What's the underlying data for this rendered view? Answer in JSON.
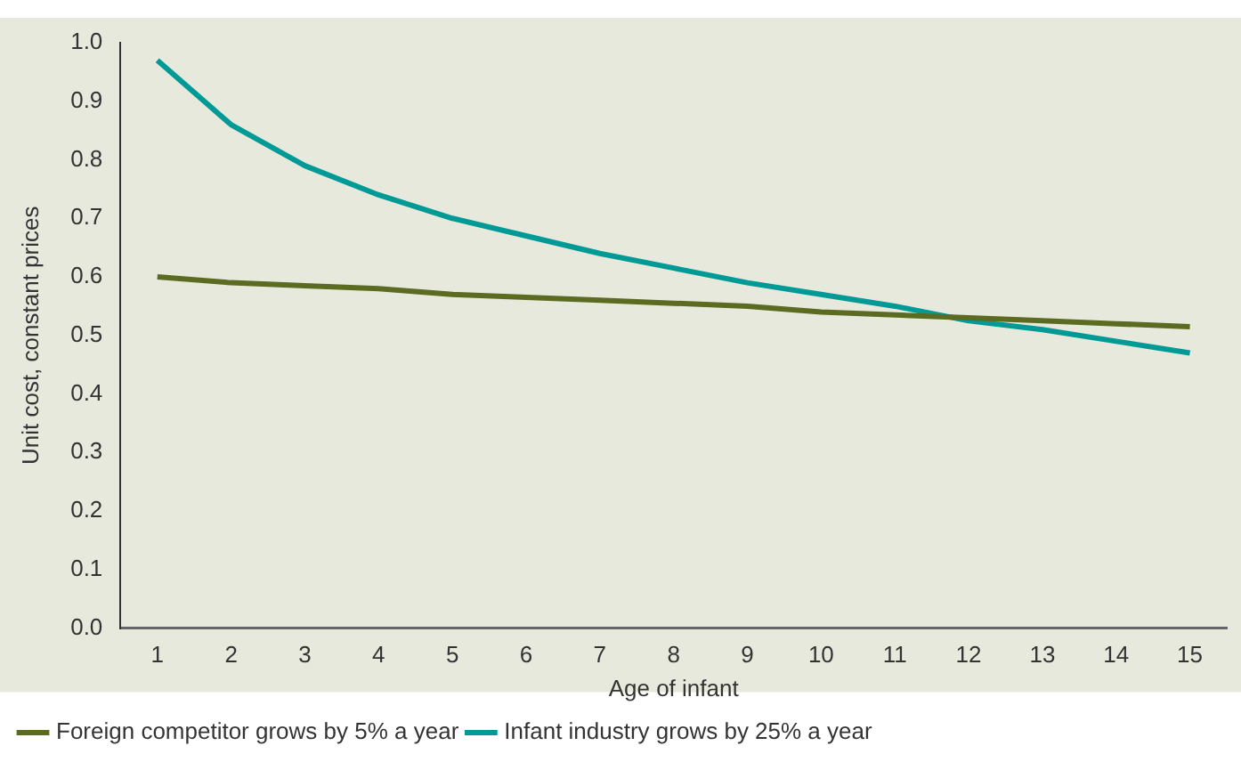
{
  "chart_data": {
    "type": "line",
    "xlabel": "Age of infant",
    "ylabel": "Unit cost, constant prices",
    "x": [
      1,
      2,
      3,
      4,
      5,
      6,
      7,
      8,
      9,
      10,
      11,
      12,
      13,
      14,
      15
    ],
    "xlim": [
      0.5,
      15.5
    ],
    "xticks": [
      1,
      2,
      3,
      4,
      5,
      6,
      7,
      8,
      9,
      10,
      11,
      12,
      13,
      14,
      15
    ],
    "series": [
      {
        "name": "Foreign competitor grows by 5% a year",
        "color": "#5c6b22",
        "values": [
          0.6,
          0.59,
          0.585,
          0.58,
          0.57,
          0.565,
          0.56,
          0.555,
          0.55,
          0.54,
          0.535,
          0.53,
          0.525,
          0.52,
          0.515
        ]
      },
      {
        "name": "Infant industry grows by 25% a year",
        "color": "#009a96",
        "values": [
          0.97,
          0.86,
          0.79,
          0.74,
          0.7,
          0.67,
          0.64,
          0.615,
          0.59,
          0.57,
          0.55,
          0.525,
          0.51,
          0.49,
          0.47
        ]
      }
    ],
    "ylim": [
      0,
      1
    ],
    "yticks": [
      {
        "value": 0,
        "label": "0.0"
      },
      0.1,
      0.2,
      0.3,
      0.4,
      0.5,
      0.6,
      0.7,
      0.8,
      0.9,
      {
        "value": 1,
        "label": "1.0"
      }
    ],
    "grid": false,
    "legend": "bottom",
    "marker": "none",
    "line_style": "solid"
  }
}
